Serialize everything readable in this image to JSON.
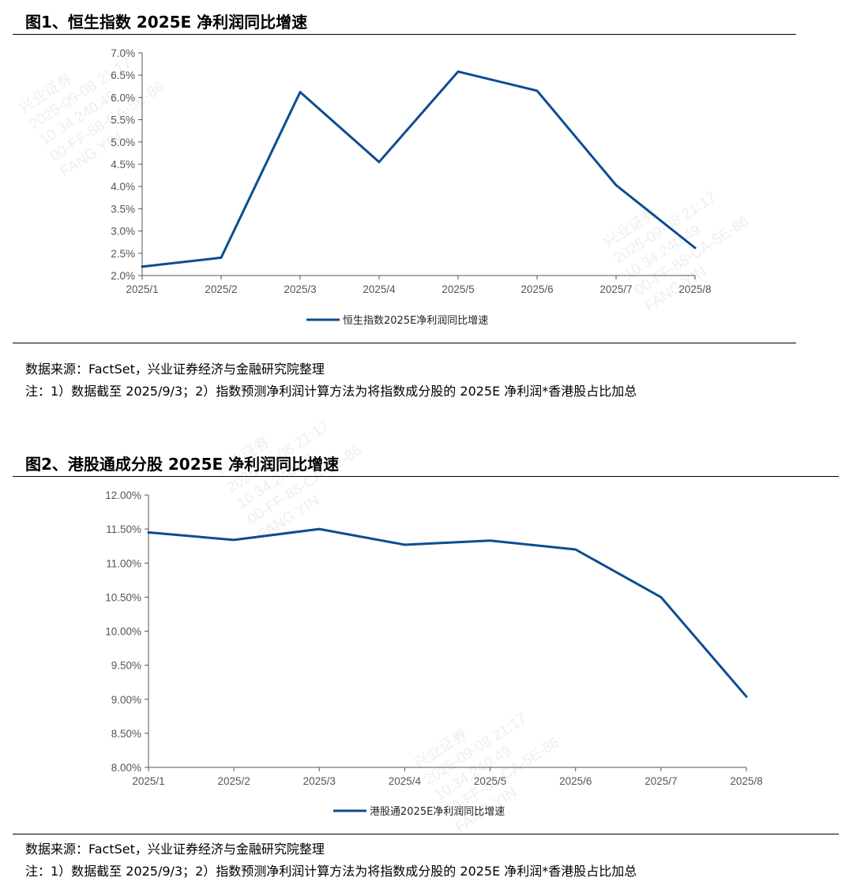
{
  "figures": [
    {
      "title": "图1、恒生指数 2025E 净利润同比增速",
      "source": "数据来源：FactSet，兴业证券经济与金融研究院整理",
      "note": "注：1）数据截至 2025/9/3；2）指数预测净利润计算方法为将指数成分股的 2025E 净利润*香港股占比加总"
    },
    {
      "title": "图2、港股通成分股 2025E 净利润同比增速",
      "source": "数据来源：FactSet，兴业证券经济与金融研究院整理",
      "note": "注：1）数据截至 2025/9/3；2）指数预测净利润计算方法为将指数成分股的 2025E 净利润*香港股占比加总"
    }
  ],
  "watermark": "兴业证券\n2025-09-08 21:17\n10.34.240.49\n00-FF-88-CA-5E-86\nFANG YIN",
  "chart_data": [
    {
      "type": "line",
      "categories": [
        "2025/1",
        "2025/2",
        "2025/3",
        "2025/4",
        "2025/5",
        "2025/6",
        "2025/7",
        "2025/8"
      ],
      "series": [
        {
          "name": "恒生指数2025E净利润同比增速",
          "values": [
            2.2,
            2.4,
            6.12,
            4.55,
            6.58,
            6.15,
            4.03,
            2.62
          ]
        }
      ],
      "ylim": [
        2.0,
        7.0
      ],
      "yticks": [
        "2.0%",
        "2.5%",
        "3.0%",
        "3.5%",
        "4.0%",
        "4.5%",
        "5.0%",
        "5.5%",
        "6.0%",
        "6.5%",
        "7.0%"
      ],
      "unit": "%",
      "grid": false,
      "legend": "bottom-center",
      "color": "#0b4d92"
    },
    {
      "type": "line",
      "categories": [
        "2025/1",
        "2025/2",
        "2025/3",
        "2025/4",
        "2025/5",
        "2025/6",
        "2025/7",
        "2025/8"
      ],
      "series": [
        {
          "name": "港股通2025E净利润同比增速",
          "values": [
            11.45,
            11.34,
            11.5,
            11.27,
            11.33,
            11.2,
            10.5,
            9.04
          ]
        }
      ],
      "ylim": [
        8.0,
        12.0
      ],
      "yticks": [
        "8.00%",
        "8.50%",
        "9.00%",
        "9.50%",
        "10.00%",
        "10.50%",
        "11.00%",
        "11.50%",
        "12.00%"
      ],
      "unit": "%",
      "grid": false,
      "legend": "bottom-center",
      "color": "#0b4d92"
    }
  ]
}
